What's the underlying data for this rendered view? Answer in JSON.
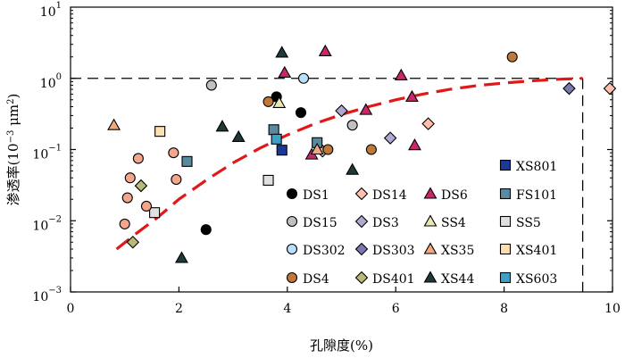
{
  "chart_data": {
    "type": "scatter",
    "xlabel": "孔隙度(%)",
    "ylabel_main": "渗透率(10",
    "ylabel_sup": "−3",
    "ylabel_tail": " μm",
    "ylabel_sup2": "2",
    "ylabel_end": ")",
    "xlim": [
      0,
      10
    ],
    "ylim": [
      0.001,
      10
    ],
    "yscale": "log",
    "xticks": [
      "0",
      "2",
      "4",
      "6",
      "8",
      "10"
    ],
    "yticks": [
      {
        "base": "10",
        "exp": "1",
        "value": 10
      },
      {
        "base": "10",
        "exp": "0",
        "value": 1
      },
      {
        "base": "10",
        "exp": "−1",
        "value": 0.1
      },
      {
        "base": "10",
        "exp": "−2",
        "value": 0.01
      },
      {
        "base": "10",
        "exp": "−3",
        "value": 0.001
      }
    ],
    "reference_lines": {
      "y": 1,
      "x": 9.45
    },
    "fit_curve": [
      [
        0.85,
        0.004
      ],
      [
        1.2,
        0.0065
      ],
      [
        1.6,
        0.011
      ],
      [
        2.0,
        0.02
      ],
      [
        2.5,
        0.037
      ],
      [
        3.0,
        0.065
      ],
      [
        3.5,
        0.105
      ],
      [
        4.0,
        0.16
      ],
      [
        4.5,
        0.23
      ],
      [
        5.0,
        0.31
      ],
      [
        5.5,
        0.4
      ],
      [
        6.0,
        0.5
      ],
      [
        6.5,
        0.6
      ],
      [
        7.0,
        0.7
      ],
      [
        7.5,
        0.79
      ],
      [
        8.0,
        0.86
      ],
      [
        8.5,
        0.92
      ],
      [
        9.0,
        0.97
      ],
      [
        9.45,
        1.0
      ]
    ],
    "legend_position": "bottom-right",
    "series": [
      {
        "name": "XS801",
        "marker": "square",
        "fill": "#1a3a9a",
        "points": [
          [
            3.9,
            0.098
          ]
        ]
      },
      {
        "name": "DS1",
        "marker": "circle",
        "fill": "#000000",
        "points": [
          [
            2.5,
            0.0075
          ],
          [
            3.8,
            0.55
          ],
          [
            4.25,
            0.33
          ]
        ]
      },
      {
        "name": "DS14",
        "marker": "diamond",
        "fill": "#ffc0b0",
        "points": [
          [
            4.65,
            0.095
          ],
          [
            6.6,
            0.23
          ],
          [
            9.95,
            0.72
          ]
        ]
      },
      {
        "name": "DS6",
        "marker": "triangle",
        "fill": "#c8286a",
        "points": [
          [
            4.7,
            2.4
          ],
          [
            3.95,
            1.2
          ],
          [
            4.45,
            0.085
          ],
          [
            5.45,
            0.36
          ],
          [
            6.1,
            1.1
          ],
          [
            6.3,
            0.55
          ],
          [
            6.35,
            0.115
          ]
        ]
      },
      {
        "name": "FS101",
        "marker": "square",
        "fill": "#5a8aa0",
        "points": [
          [
            2.15,
            0.068
          ],
          [
            3.75,
            0.19
          ],
          [
            4.55,
            0.125
          ]
        ]
      },
      {
        "name": "DS15",
        "marker": "circle",
        "fill": "#c0c0c0",
        "points": [
          [
            2.6,
            0.8
          ],
          [
            5.2,
            0.22
          ]
        ]
      },
      {
        "name": "DS3",
        "marker": "diamond",
        "fill": "#b0a8d0",
        "points": [
          [
            5.0,
            0.35
          ],
          [
            5.9,
            0.145
          ]
        ]
      },
      {
        "name": "SS4",
        "marker": "triangle",
        "fill": "#e8e8b0",
        "points": [
          [
            3.85,
            0.45
          ]
        ]
      },
      {
        "name": "SS5",
        "marker": "square",
        "fill": "#e0e0e0",
        "points": [
          [
            3.65,
            0.037
          ],
          [
            1.55,
            0.013
          ]
        ]
      },
      {
        "name": "DS302",
        "marker": "circle",
        "fill": "#b8e0f8",
        "points": [
          [
            4.3,
            1.0
          ]
        ]
      },
      {
        "name": "DS303",
        "marker": "diamond",
        "fill": "#7a78b0",
        "points": [
          [
            9.2,
            0.72
          ]
        ]
      },
      {
        "name": "XS35",
        "marker": "triangle",
        "fill": "#f0a880",
        "points": [
          [
            0.8,
            0.22
          ],
          [
            4.55,
            0.1
          ]
        ]
      },
      {
        "name": "XS401",
        "marker": "square",
        "fill": "#fde0b0",
        "points": [
          [
            1.65,
            0.18
          ]
        ]
      },
      {
        "name": "DS4",
        "marker": "circle",
        "fill": "#c07838",
        "points": [
          [
            3.65,
            0.47
          ],
          [
            4.75,
            0.1
          ],
          [
            5.55,
            0.1
          ],
          [
            8.15,
            2.0
          ]
        ]
      },
      {
        "name": "DS401",
        "marker": "diamond",
        "fill": "#b8b878",
        "points": [
          [
            1.3,
            0.031
          ],
          [
            1.15,
            0.005
          ]
        ]
      },
      {
        "name": "XS44",
        "marker": "triangle",
        "fill": "#1e3a38",
        "points": [
          [
            3.9,
            2.3
          ],
          [
            2.8,
            0.21
          ],
          [
            3.1,
            0.15
          ],
          [
            5.2,
            0.052
          ],
          [
            2.05,
            0.003
          ]
        ]
      },
      {
        "name": "XS603",
        "marker": "square",
        "fill": "#3ea0c8",
        "points": [
          [
            3.8,
            0.14
          ]
        ]
      },
      {
        "name": "",
        "marker": "circle",
        "fill": "#f4a58a",
        "points": [
          [
            1.25,
            0.075
          ],
          [
            1.1,
            0.04
          ],
          [
            1.05,
            0.021
          ],
          [
            1.0,
            0.009
          ],
          [
            1.9,
            0.09
          ],
          [
            1.95,
            0.038
          ],
          [
            1.4,
            0.016
          ]
        ]
      }
    ]
  }
}
